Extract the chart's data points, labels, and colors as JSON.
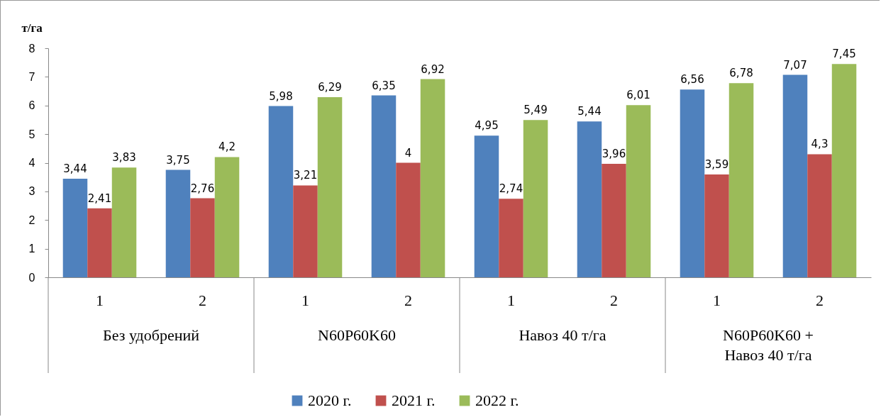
{
  "chart_data": {
    "type": "bar",
    "ylabel": "т/га",
    "categories": [
      "1",
      "2",
      "1",
      "2",
      "1",
      "2",
      "1",
      "2"
    ],
    "annotations": [
      "Без удобрений",
      "N60P60K60",
      "Навоз 40 т/га",
      "N60P60K60 + Навоз 40 т/га"
    ],
    "series": [
      {
        "name": "2020 г.",
        "color": "#4f81bd",
        "values": [
          3.44,
          3.75,
          5.98,
          6.35,
          4.95,
          5.44,
          6.56,
          7.07
        ],
        "value_labels": [
          "3,44",
          "3,75",
          "5,98",
          "6,35",
          "4,95",
          "5,44",
          "6,56",
          "7,07"
        ]
      },
      {
        "name": "2021 г.",
        "color": "#c0504d",
        "values": [
          2.41,
          2.76,
          3.21,
          4,
          2.74,
          3.96,
          3.59,
          4.3
        ],
        "value_labels": [
          "2,41",
          "2,76",
          "3,21",
          "4",
          "2,74",
          "3,96",
          "3,59",
          "4,3"
        ]
      },
      {
        "name": "2022 г.",
        "color": "#9bbb59",
        "values": [
          3.83,
          4.2,
          6.29,
          6.92,
          5.49,
          6.01,
          6.78,
          7.45
        ],
        "value_labels": [
          "3,83",
          "4,2",
          "6,29",
          "6,92",
          "5,49",
          "6,01",
          "6,78",
          "7,45"
        ]
      }
    ],
    "ylim": [
      0,
      8
    ],
    "yticks": [
      0,
      1,
      2,
      3,
      4,
      5,
      6,
      7,
      8
    ],
    "grid": false,
    "legend": "bottom"
  }
}
